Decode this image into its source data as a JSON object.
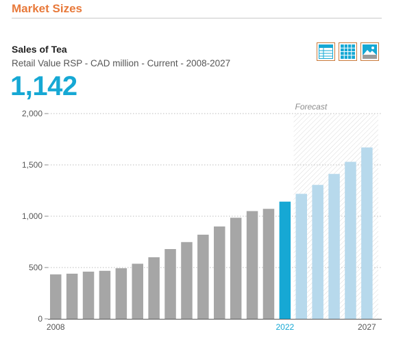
{
  "section": {
    "title": "Market Sizes"
  },
  "chart_title": "Sales of Tea",
  "chart_subtitle": "Retail Value RSP - CAD million - Current - 2008-2027",
  "headline_value": "1,142",
  "view_icons": [
    "table-view-icon",
    "grid-view-icon",
    "image-view-icon"
  ],
  "colors": {
    "accent": "#e8793a",
    "historic": "#a6a6a6",
    "current": "#16a8d4",
    "forecast": "#b7d9ec",
    "icon_border": "#c97a3a"
  },
  "chart_data": {
    "type": "bar",
    "title": "Sales of Tea",
    "subtitle": "Retail Value RSP - CAD million - Current - 2008-2027",
    "categories": [
      2008,
      2009,
      2010,
      2011,
      2012,
      2013,
      2014,
      2015,
      2016,
      2017,
      2018,
      2019,
      2020,
      2021,
      2022,
      2023,
      2024,
      2025,
      2026,
      2027
    ],
    "values": [
      433,
      440,
      460,
      468,
      493,
      537,
      600,
      680,
      748,
      820,
      900,
      985,
      1050,
      1072,
      1142,
      1218,
      1305,
      1412,
      1530,
      1670
    ],
    "x_tick_labels": [
      "2008",
      "2022",
      "2027"
    ],
    "y_ticks": [
      0,
      500,
      1000,
      1500,
      2000
    ],
    "y_tick_labels": [
      "0",
      "500",
      "1,000",
      "1,500",
      "2,000"
    ],
    "ylim": [
      0,
      2000
    ],
    "current_year": 2022,
    "forecast_from": 2023,
    "forecast_label": "Forecast",
    "grid": true
  }
}
